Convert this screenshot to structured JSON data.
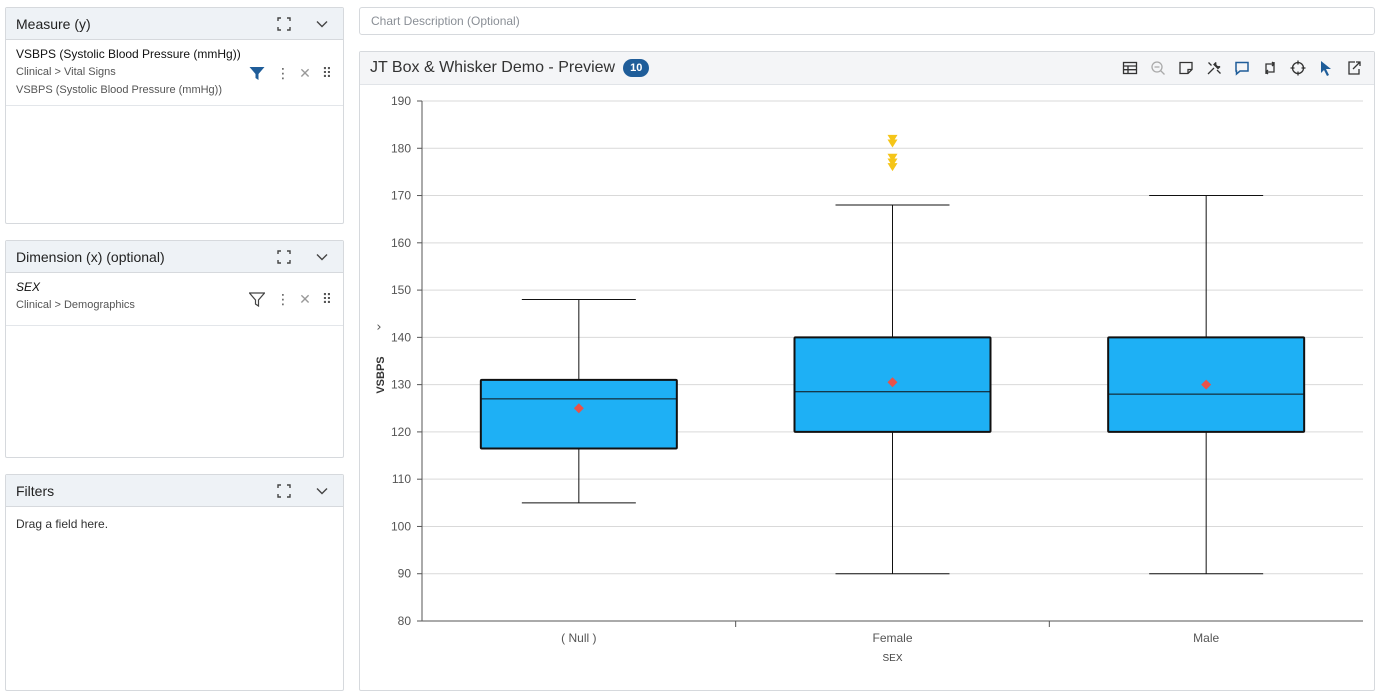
{
  "measure_panel": {
    "title": "Measure (y)",
    "field": {
      "name": "VSBPS (Systolic Blood Pressure (mmHg))",
      "path": "Clinical > Vital Signs",
      "description": "VSBPS (Systolic Blood Pressure (mmHg))"
    }
  },
  "dimension_panel": {
    "title": "Dimension (x) (optional)",
    "field": {
      "name": "SEX",
      "path": "Clinical > Demographics"
    }
  },
  "filters_panel": {
    "title": "Filters",
    "hint": "Drag a field here."
  },
  "chart_description": {
    "placeholder": "Chart Description (Optional)"
  },
  "chart_panel": {
    "title": "JT Box & Whisker Demo - Preview",
    "count": "10",
    "colors": {
      "box_fill": "#1eb0f5",
      "mean_marker": "#e8534a",
      "outlier": "#f5c518",
      "accent": "#1f5d99"
    },
    "toolbar_icons": [
      "table-icon",
      "zoom-out-icon",
      "note-icon",
      "tools-icon",
      "comment-icon",
      "swap-icon",
      "crosshair-icon",
      "pointer-icon",
      "export-icon"
    ]
  },
  "chart_data": {
    "type": "box",
    "xlabel": "SEX",
    "ylabel": "VSBPS",
    "ylim": [
      80,
      190
    ],
    "yticks": [
      80,
      90,
      100,
      110,
      120,
      130,
      140,
      150,
      160,
      170,
      180,
      190
    ],
    "grid": true,
    "categories": [
      "( Null )",
      "Female",
      "Male"
    ],
    "boxes": [
      {
        "min": 105,
        "q1": 116.5,
        "median": 127,
        "q3": 131,
        "max": 148,
        "mean": 125,
        "outliers": []
      },
      {
        "min": 90,
        "q1": 120,
        "median": 128.5,
        "q3": 140,
        "max": 168,
        "mean": 130.5,
        "outliers": [
          182,
          181,
          178,
          177,
          176
        ]
      },
      {
        "min": 90,
        "q1": 120,
        "median": 128,
        "q3": 140,
        "max": 170,
        "mean": 130,
        "outliers": []
      }
    ]
  }
}
